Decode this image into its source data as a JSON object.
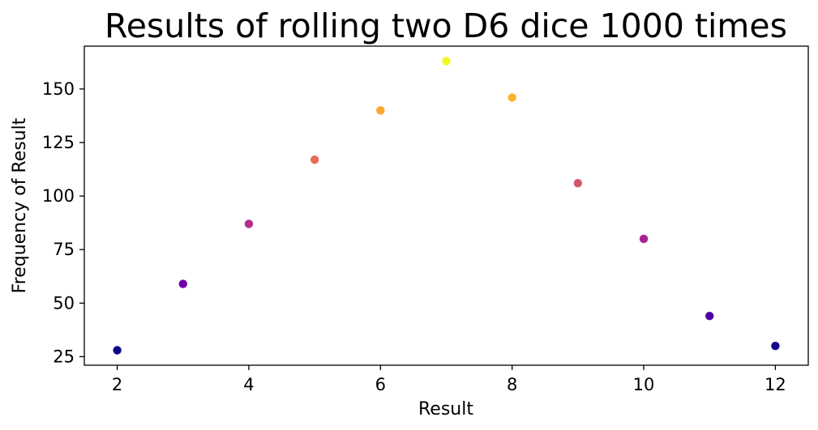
{
  "chart_data": {
    "type": "scatter",
    "title": "Results of rolling two D6 dice 1000 times",
    "xlabel": "Result",
    "ylabel": "Frequency of Result",
    "xlim": [
      1.5,
      12.5
    ],
    "ylim": [
      21,
      170
    ],
    "xticks": [
      2,
      4,
      6,
      8,
      10,
      12
    ],
    "yticks": [
      25,
      50,
      75,
      100,
      125,
      150
    ],
    "grid": false,
    "colormap": "plasma",
    "points": [
      {
        "x": 2,
        "y": 28,
        "color": "#0d0887"
      },
      {
        "x": 3,
        "y": 59,
        "color": "#7201a8"
      },
      {
        "x": 4,
        "y": 87,
        "color": "#b42e8f"
      },
      {
        "x": 5,
        "y": 117,
        "color": "#e66c5c"
      },
      {
        "x": 6,
        "y": 140,
        "color": "#f9a72d"
      },
      {
        "x": 7,
        "y": 163,
        "color": "#f0f921"
      },
      {
        "x": 8,
        "y": 146,
        "color": "#fbb72c"
      },
      {
        "x": 9,
        "y": 106,
        "color": "#d5546e"
      },
      {
        "x": 10,
        "y": 80,
        "color": "#aa2395"
      },
      {
        "x": 11,
        "y": 44,
        "color": "#4c02a1"
      },
      {
        "x": 12,
        "y": 30,
        "color": "#150789"
      }
    ]
  }
}
